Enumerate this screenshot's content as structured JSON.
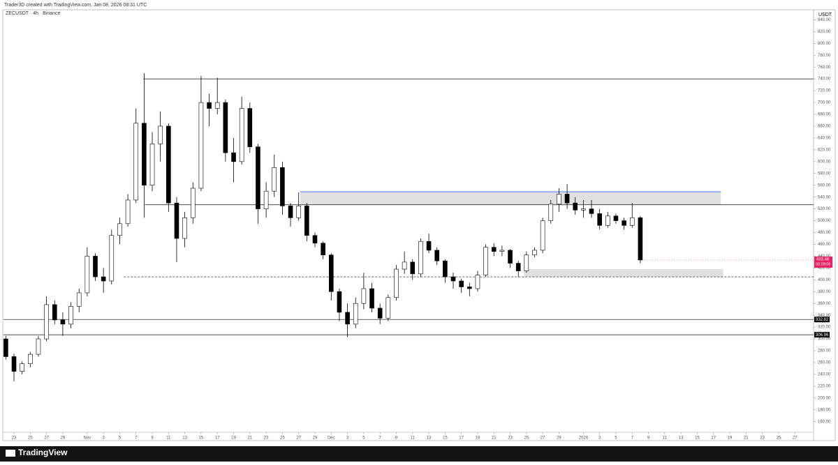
{
  "header": "Trader3D created with TradingView.com, Jan 08, 2026 08:31 UTC",
  "footer": "TradingView",
  "chart_data": {
    "type": "candlestick",
    "symbol": "ZECUSDT · 4h · Binance",
    "currency": "USDT",
    "countdown": "03:28:06",
    "x": [
      -1,
      0,
      1,
      2,
      3,
      4,
      5,
      6,
      7,
      8,
      9,
      10,
      11,
      12,
      13,
      14,
      15,
      16,
      17,
      18,
      19,
      20,
      21,
      22,
      23,
      24,
      25,
      26,
      27,
      28,
      29,
      30,
      31,
      32,
      33,
      34,
      35,
      36,
      37,
      38,
      39,
      40,
      41,
      42,
      43,
      44,
      45,
      46,
      47,
      48,
      49,
      50,
      51,
      52,
      53,
      54,
      55,
      56,
      57,
      58,
      59,
      60,
      61,
      62,
      63,
      64,
      65,
      66,
      67,
      68,
      69,
      70,
      71,
      72,
      73,
      74,
      75,
      76,
      77
    ],
    "open": [
      300,
      270,
      245,
      258,
      274,
      300,
      358,
      332,
      325,
      355,
      378,
      440,
      405,
      398,
      475,
      495,
      535,
      665,
      560,
      630,
      660,
      530,
      470,
      505,
      555,
      700,
      690,
      700,
      615,
      600,
      690,
      625,
      520,
      550,
      590,
      525,
      505,
      525,
      475,
      462,
      442,
      380,
      345,
      325,
      360,
      385,
      352,
      335,
      370,
      418,
      430,
      410,
      465,
      450,
      432,
      405,
      398,
      388,
      385,
      408,
      455,
      448,
      450,
      428,
      415,
      442,
      450,
      500,
      528,
      545,
      530,
      518,
      520,
      512,
      492,
      508,
      500,
      492,
      505
    ],
    "high": [
      305,
      275,
      262,
      278,
      305,
      372,
      365,
      345,
      362,
      385,
      455,
      445,
      420,
      485,
      505,
      545,
      690,
      750,
      650,
      685,
      665,
      540,
      515,
      565,
      745,
      715,
      742,
      705,
      640,
      710,
      700,
      630,
      565,
      612,
      600,
      530,
      548,
      530,
      480,
      465,
      445,
      385,
      360,
      370,
      412,
      395,
      360,
      375,
      425,
      448,
      435,
      470,
      478,
      455,
      435,
      412,
      402,
      395,
      415,
      460,
      462,
      458,
      452,
      432,
      448,
      455,
      505,
      535,
      555,
      562,
      540,
      535,
      535,
      520,
      515,
      512,
      505,
      530,
      508
    ],
    "low": [
      265,
      228,
      240,
      252,
      270,
      296,
      325,
      305,
      318,
      345,
      372,
      398,
      378,
      392,
      460,
      490,
      530,
      505,
      550,
      600,
      515,
      430,
      455,
      495,
      550,
      660,
      680,
      600,
      565,
      595,
      615,
      495,
      505,
      540,
      510,
      490,
      500,
      465,
      455,
      435,
      365,
      330,
      303,
      318,
      350,
      345,
      325,
      330,
      365,
      410,
      400,
      405,
      445,
      425,
      395,
      385,
      378,
      372,
      380,
      405,
      440,
      440,
      420,
      405,
      412,
      438,
      445,
      495,
      515,
      520,
      510,
      505,
      505,
      485,
      488,
      495,
      485,
      488,
      428
    ],
    "close": [
      270,
      245,
      258,
      274,
      300,
      358,
      332,
      325,
      355,
      378,
      440,
      405,
      398,
      475,
      495,
      535,
      665,
      560,
      630,
      660,
      530,
      470,
      505,
      555,
      700,
      690,
      700,
      615,
      600,
      690,
      625,
      520,
      550,
      590,
      525,
      505,
      525,
      475,
      462,
      442,
      380,
      345,
      325,
      360,
      385,
      352,
      335,
      370,
      418,
      430,
      410,
      465,
      450,
      432,
      405,
      398,
      388,
      385,
      408,
      455,
      448,
      450,
      428,
      415,
      442,
      450,
      500,
      528,
      545,
      530,
      518,
      520,
      512,
      492,
      508,
      500,
      492,
      505,
      433.48
    ],
    "up_color": "#ffffff",
    "down_color": "#000000",
    "xlim": [
      -1.29,
      98.3
    ],
    "ylim": [
      142,
      857
    ],
    "xticks": [
      {
        "value": 0,
        "label": "23"
      },
      {
        "value": 2,
        "label": "25"
      },
      {
        "value": 4,
        "label": "27"
      },
      {
        "value": 6,
        "label": "29"
      },
      {
        "value": 9,
        "label": "Nov"
      },
      {
        "value": 11,
        "label": "3"
      },
      {
        "value": 13,
        "label": "5"
      },
      {
        "value": 15,
        "label": "7"
      },
      {
        "value": 17,
        "label": "9"
      },
      {
        "value": 19,
        "label": "11"
      },
      {
        "value": 21,
        "label": "13"
      },
      {
        "value": 23,
        "label": "15"
      },
      {
        "value": 25,
        "label": "17"
      },
      {
        "value": 27,
        "label": "19"
      },
      {
        "value": 29,
        "label": "21"
      },
      {
        "value": 31,
        "label": "23"
      },
      {
        "value": 33,
        "label": "25"
      },
      {
        "value": 35,
        "label": "27"
      },
      {
        "value": 37,
        "label": "29"
      },
      {
        "value": 39,
        "label": "Dec"
      },
      {
        "value": 41,
        "label": "3"
      },
      {
        "value": 43,
        "label": "5"
      },
      {
        "value": 45,
        "label": "7"
      },
      {
        "value": 47,
        "label": "9"
      },
      {
        "value": 49,
        "label": "11"
      },
      {
        "value": 51,
        "label": "13"
      },
      {
        "value": 53,
        "label": "15"
      },
      {
        "value": 55,
        "label": "17"
      },
      {
        "value": 57,
        "label": "19"
      },
      {
        "value": 59,
        "label": "21"
      },
      {
        "value": 61,
        "label": "23"
      },
      {
        "value": 63,
        "label": "25"
      },
      {
        "value": 65,
        "label": "27"
      },
      {
        "value": 67,
        "label": "29"
      },
      {
        "value": 70,
        "label": "2026"
      },
      {
        "value": 72,
        "label": "3"
      },
      {
        "value": 74,
        "label": "5"
      },
      {
        "value": 76,
        "label": "7"
      },
      {
        "value": 78,
        "label": "9"
      },
      {
        "value": 80,
        "label": "11"
      },
      {
        "value": 82,
        "label": "13"
      },
      {
        "value": 84,
        "label": "15"
      },
      {
        "value": 86,
        "label": "17"
      },
      {
        "value": 88,
        "label": "19"
      },
      {
        "value": 90,
        "label": "21"
      },
      {
        "value": 92,
        "label": "23"
      },
      {
        "value": 94,
        "label": "25"
      },
      {
        "value": 96,
        "label": "27"
      }
    ],
    "yticks": [
      {
        "value": 160,
        "label": "160.00"
      },
      {
        "value": 180,
        "label": "180.00"
      },
      {
        "value": 200,
        "label": "200.00"
      },
      {
        "value": 220,
        "label": "220.00"
      },
      {
        "value": 240,
        "label": "240.00"
      },
      {
        "value": 260,
        "label": "260.00"
      },
      {
        "value": 280,
        "label": "280.00"
      },
      {
        "value": 300,
        "label": "300.00"
      },
      {
        "value": 320,
        "label": "320.00"
      },
      {
        "value": 340,
        "label": "340.00"
      },
      {
        "value": 360,
        "label": "360.00"
      },
      {
        "value": 380,
        "label": "380.00"
      },
      {
        "value": 400,
        "label": "400.00"
      },
      {
        "value": 420,
        "label": "420.00"
      },
      {
        "value": 440,
        "label": "440.00"
      },
      {
        "value": 460,
        "label": "460.00"
      },
      {
        "value": 480,
        "label": "480.00"
      },
      {
        "value": 500,
        "label": "500.00"
      },
      {
        "value": 520,
        "label": "520.00"
      },
      {
        "value": 540,
        "label": "540.00"
      },
      {
        "value": 560,
        "label": "560.00"
      },
      {
        "value": 580,
        "label": "580.00"
      },
      {
        "value": 600,
        "label": "600.00"
      },
      {
        "value": 620,
        "label": "620.00"
      },
      {
        "value": 640,
        "label": "640.00"
      },
      {
        "value": 660,
        "label": "660.00"
      },
      {
        "value": 680,
        "label": "680.00"
      },
      {
        "value": 700,
        "label": "700.00"
      },
      {
        "value": 720,
        "label": "720.00"
      },
      {
        "value": 740,
        "label": "740.00"
      },
      {
        "value": 760,
        "label": "760.00"
      },
      {
        "value": 780,
        "label": "780.00"
      },
      {
        "value": 800,
        "label": "800.00"
      },
      {
        "value": 820,
        "label": "820.00"
      },
      {
        "value": 840,
        "label": "840.00"
      }
    ],
    "hlines": [
      {
        "value": 740,
        "start": 15.9
      },
      {
        "value": 527,
        "start": 16.1
      },
      {
        "value": 405,
        "start": 13.5,
        "dashed": true
      }
    ],
    "marked_levels": [
      332.82,
      306.96
    ],
    "zones": [
      {
        "low": 527,
        "high": 549,
        "start": 35.2,
        "end": 86.9,
        "top_color": "#2962ff"
      },
      {
        "low": 405,
        "high": 418,
        "start": 62.7,
        "end": 87.2
      }
    ],
    "zone_color": "#e0e0e0"
  }
}
